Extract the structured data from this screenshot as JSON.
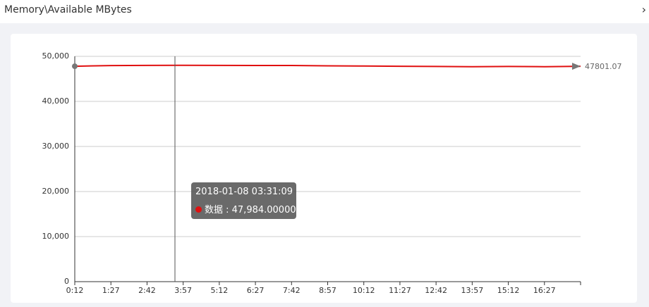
{
  "chart_data": {
    "type": "line",
    "title": "Memory\\Available MBytes",
    "categories": [
      "0:12",
      "1:27",
      "2:42",
      "3:57",
      "5:12",
      "6:27",
      "7:42",
      "8:57",
      "10:12",
      "11:27",
      "12:42",
      "13:57",
      "15:12",
      "16:27",
      null
    ],
    "series": [
      {
        "color": "#e01010",
        "values": [
          47800,
          47950,
          47984,
          48000,
          47990,
          47970,
          47960,
          47900,
          47850,
          47800,
          47750,
          47700,
          47750,
          47700,
          47801.07
        ]
      }
    ],
    "ylim": [
      0,
      50000
    ],
    "yticks": [
      0,
      {
        "value": 10000,
        "label": "10,000"
      },
      {
        "value": 20000,
        "label": "20,000"
      },
      {
        "value": 30000,
        "label": "30,000"
      },
      {
        "value": 40000,
        "label": "40,000"
      },
      {
        "value": 50000,
        "label": "50,000"
      }
    ],
    "grid": true,
    "tooltip": {
      "title": "2018-01-08 03:31:09",
      "text": "数据 : 47,984.00000"
    }
  }
}
